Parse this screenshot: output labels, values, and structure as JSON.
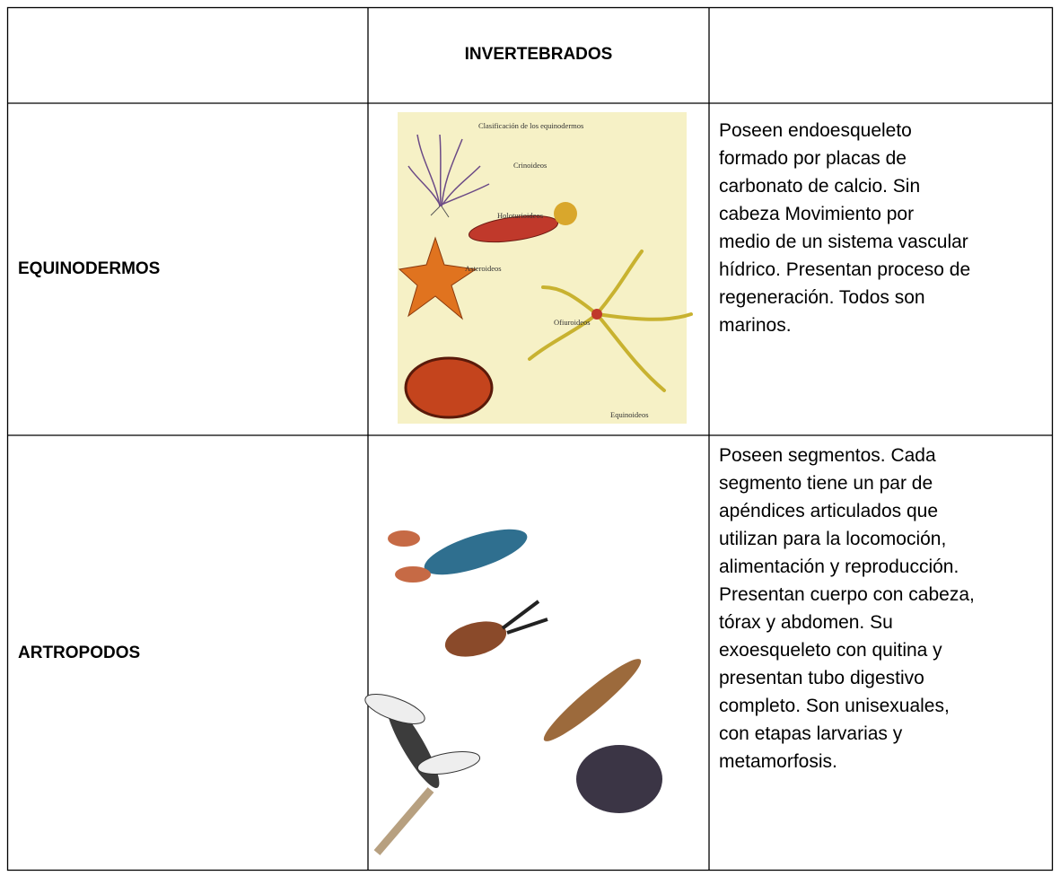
{
  "table": {
    "header": [
      "",
      "INVERTEBRADOS",
      ""
    ],
    "rows": [
      {
        "name": "EQUINODERMOS",
        "image_labels": {
          "title": "Clasificación de los equinodermos",
          "items": [
            "Crinoideos",
            "Holoturioideos",
            "Asteroideos",
            "Ofiuroideos",
            "Equinoideos"
          ]
        },
        "description": [
          "Poseen endoesqueleto",
          "formado por placas de",
          "carbonato de calcio. Sin",
          "cabeza Movimiento por",
          "medio de un sistema vascular",
          "hídrico. Presentan proceso de",
          "regeneración. Todos son",
          "marinos."
        ]
      },
      {
        "name": "ARTROPODOS",
        "description": [
          "Poseen segmentos. Cada",
          "segmento tiene un par de",
          "apéndices articulados que",
          "utilizan para la locomoción,",
          "alimentación y reproducción.",
          "Presentan cuerpo con cabeza,",
          "tórax y abdomen. Su",
          "exoesqueleto con quitina y",
          "presentan tubo digestivo",
          "completo. Son unisexuales,",
          "con etapas larvarias y",
          "metamorfosis."
        ]
      }
    ]
  }
}
